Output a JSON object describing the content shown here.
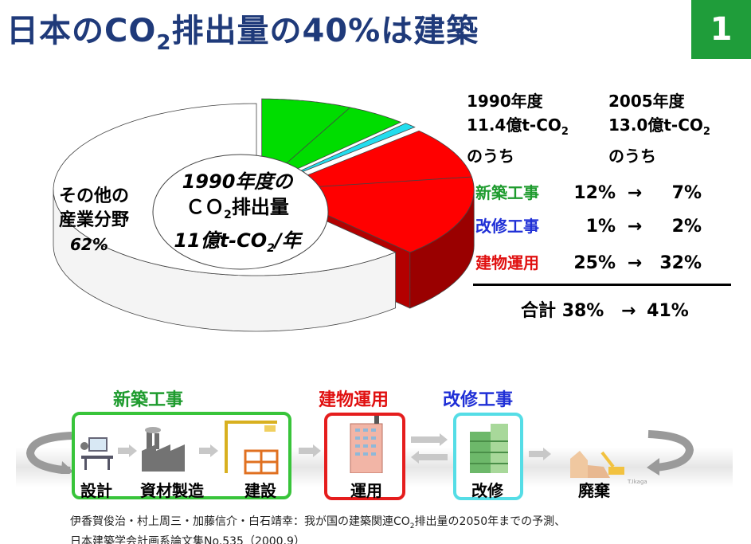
{
  "header": {
    "title_pre": "日本のCO",
    "title_sub": "2",
    "title_post": "排出量の40%は建築",
    "slide_number": "1"
  },
  "pie": {
    "other_line1": "その他の",
    "other_line2": "産業分野",
    "other_pct": "62%",
    "center_line1": "1990年度の",
    "center_line2_pre": "ＣＯ",
    "center_line2_sub": "2",
    "center_line2_post": "排出量",
    "center_line3_pre": "11億t-CO",
    "center_line3_sub": "2",
    "center_line3_post": "/年"
  },
  "comparison": {
    "col1_line1": "1990年度",
    "col1_line2_pre": "11.4億t-CO",
    "col1_line2_sub": "2",
    "col1_line3": "のうち",
    "col2_line1": "2005年度",
    "col2_line2_pre": "13.0億t-CO",
    "col2_line2_sub": "2",
    "col2_line3": "のうち",
    "arrow": "→",
    "rows": [
      {
        "label": "新築工事",
        "v1990": "12%",
        "v2005": "7%"
      },
      {
        "label": "改修工事",
        "v1990": "1%",
        "v2005": "2%"
      },
      {
        "label": "建物運用",
        "v1990": "25%",
        "v2005": "32%"
      }
    ],
    "total_label": "合計",
    "total_1990": "38%",
    "total_2005": "41%"
  },
  "chart_data": {
    "type": "pie",
    "categories": [
      "新築工事",
      "改修工事",
      "建物運用",
      "その他の産業分野"
    ],
    "values": [
      12,
      1,
      25,
      62
    ],
    "colors": [
      "#00dd00",
      "#22ddee",
      "#ff0000",
      "#ffffff"
    ]
  },
  "lifecycle": {
    "stage_new": "新築工事",
    "stage_use": "建物運用",
    "stage_renovate": "改修工事",
    "cap_design": "設計",
    "cap_materials": "資材製造",
    "cap_construction": "建設",
    "cap_operation": "運用",
    "cap_renovation": "改修",
    "cap_demolition": "廃棄",
    "small_credit": "T.Ikaga",
    "icons": [
      "computer-desk-icon",
      "factory-icon",
      "crane-icon",
      "office-building-icon",
      "renovation-building-icon",
      "demolition-icon"
    ]
  },
  "citation": {
    "line1_pre": "伊香賀俊治・村上周三・加藤信介・白石靖幸：我が国の建築関連CO",
    "line1_sub": "2",
    "line1_post": "排出量の2050年までの予測、",
    "line2": "日本建築学会計画系論文集No.535（2000.9）"
  }
}
